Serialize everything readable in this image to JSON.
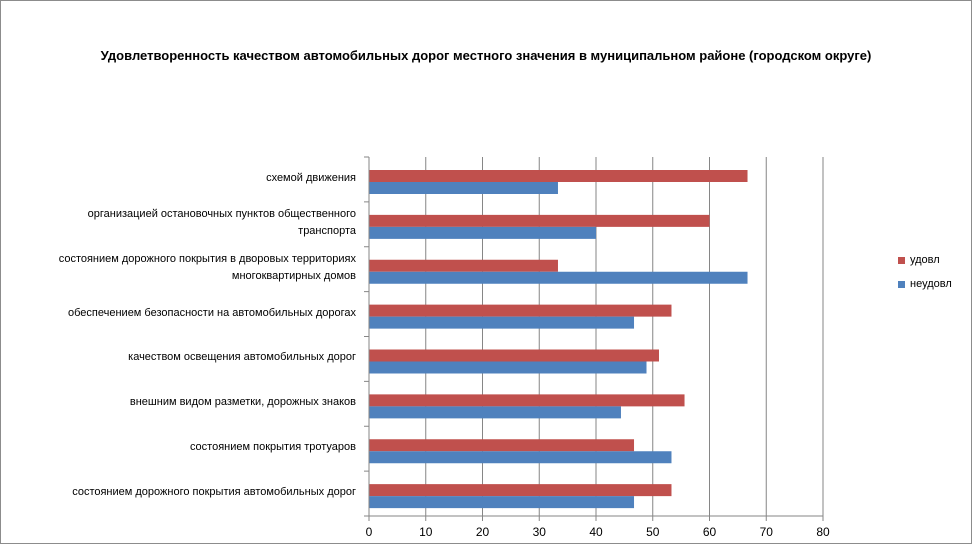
{
  "chart_data": {
    "type": "bar",
    "orientation": "horizontal",
    "title": "Удовлетворенность качеством автомобильных дорог местного значения в муниципальном районе (городском округе)",
    "categories": [
      "схемой движения",
      "организацией остановочных пунктов общественного транспорта",
      "состоянием дорожного покрытия в дворовых территориях многоквартирных домов",
      "обеспечением  безопасности на автомобильных дорогах",
      "качеством  освещения  автомобильных дорог",
      "внешним  видом разметки, дорожных знаков",
      "состоянием  покрытия тротуаров",
      "состоянием дорожного покрытия автомобильных дорог"
    ],
    "series": [
      {
        "name": "удовл",
        "color": "#c0504d",
        "values": [
          66.7,
          60.0,
          33.3,
          53.3,
          51.1,
          55.6,
          46.7,
          53.3
        ]
      },
      {
        "name": "неудовл",
        "color": "#4f81bd",
        "values": [
          33.3,
          40.0,
          66.7,
          46.7,
          48.9,
          44.4,
          53.3,
          46.7
        ]
      }
    ],
    "xlim": [
      0,
      80
    ],
    "xticks": [
      "0",
      "10",
      "20",
      "30",
      "40",
      "50",
      "60",
      "70",
      "80"
    ],
    "xlabel": "",
    "ylabel": "",
    "grid": true,
    "legend_position": "right"
  }
}
